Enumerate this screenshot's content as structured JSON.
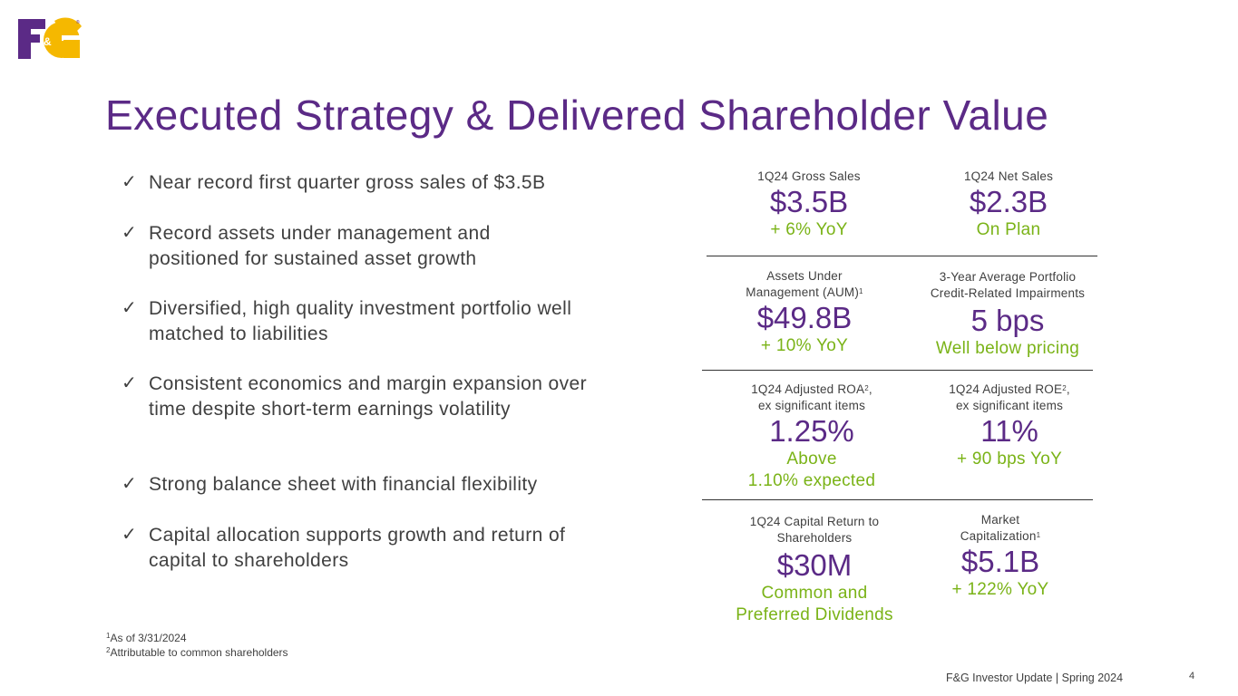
{
  "brand": {
    "logo_text": "F&G",
    "purple": "#5b2a86",
    "gold": "#f5b800",
    "green": "#7ab317"
  },
  "title": "Executed Strategy & Delivered Shareholder Value",
  "bullets": [
    "Near record first quarter gross sales of $3.5B",
    "Record assets under management and positioned for sustained asset growth",
    "Diversified, high quality investment portfolio well matched to liabilities",
    "Consistent economics and margin expansion over time despite short-term earnings volatility",
    "Strong balance sheet with financial flexibility",
    "Capital allocation supports growth and return of capital to shareholders"
  ],
  "metrics": {
    "gross_sales": {
      "label": "1Q24 Gross Sales",
      "value": "$3.5B",
      "note": "+ 6% YoY"
    },
    "net_sales": {
      "label": "1Q24 Net Sales",
      "value": "$2.3B",
      "note": "On Plan"
    },
    "aum": {
      "label_line1": "Assets Under",
      "label_line2": "Management (AUM)",
      "sup": "1",
      "value": "$49.8B",
      "note": "+ 10% YoY"
    },
    "impairments": {
      "label_line1": "3-Year Average Portfolio",
      "label_line2": "Credit-Related Impairments",
      "value": "5 bps",
      "note": "Well below pricing"
    },
    "roa": {
      "label_line1a": "1Q24 Adjusted ROA",
      "sup": "2",
      "label_line1b": ",",
      "label_line2": "ex significant items",
      "value": "1.25%",
      "note_line1": "Above",
      "note_line2": "1.10% expected"
    },
    "roe": {
      "label_line1a": "1Q24 Adjusted ROE",
      "sup": "2",
      "label_line1b": ",",
      "label_line2": "ex significant items",
      "value": "11%",
      "note": "+ 90 bps YoY"
    },
    "capital_return": {
      "label_line1": "1Q24 Capital Return to",
      "label_line2": "Shareholders",
      "value": "$30M",
      "note_line1": "Common and",
      "note_line2": "Preferred Dividends"
    },
    "market_cap": {
      "label_line1": "Market",
      "label_line2": "Capitalization",
      "sup": "1",
      "value": "$5.1B",
      "note": "+ 122% YoY"
    }
  },
  "footnotes": [
    {
      "marker": "1",
      "text": "As of 3/31/2024"
    },
    {
      "marker": "2",
      "text": "Attributable to common shareholders"
    }
  ],
  "footer": {
    "text": "F&G Investor Update | Spring 2024",
    "page": "4"
  }
}
